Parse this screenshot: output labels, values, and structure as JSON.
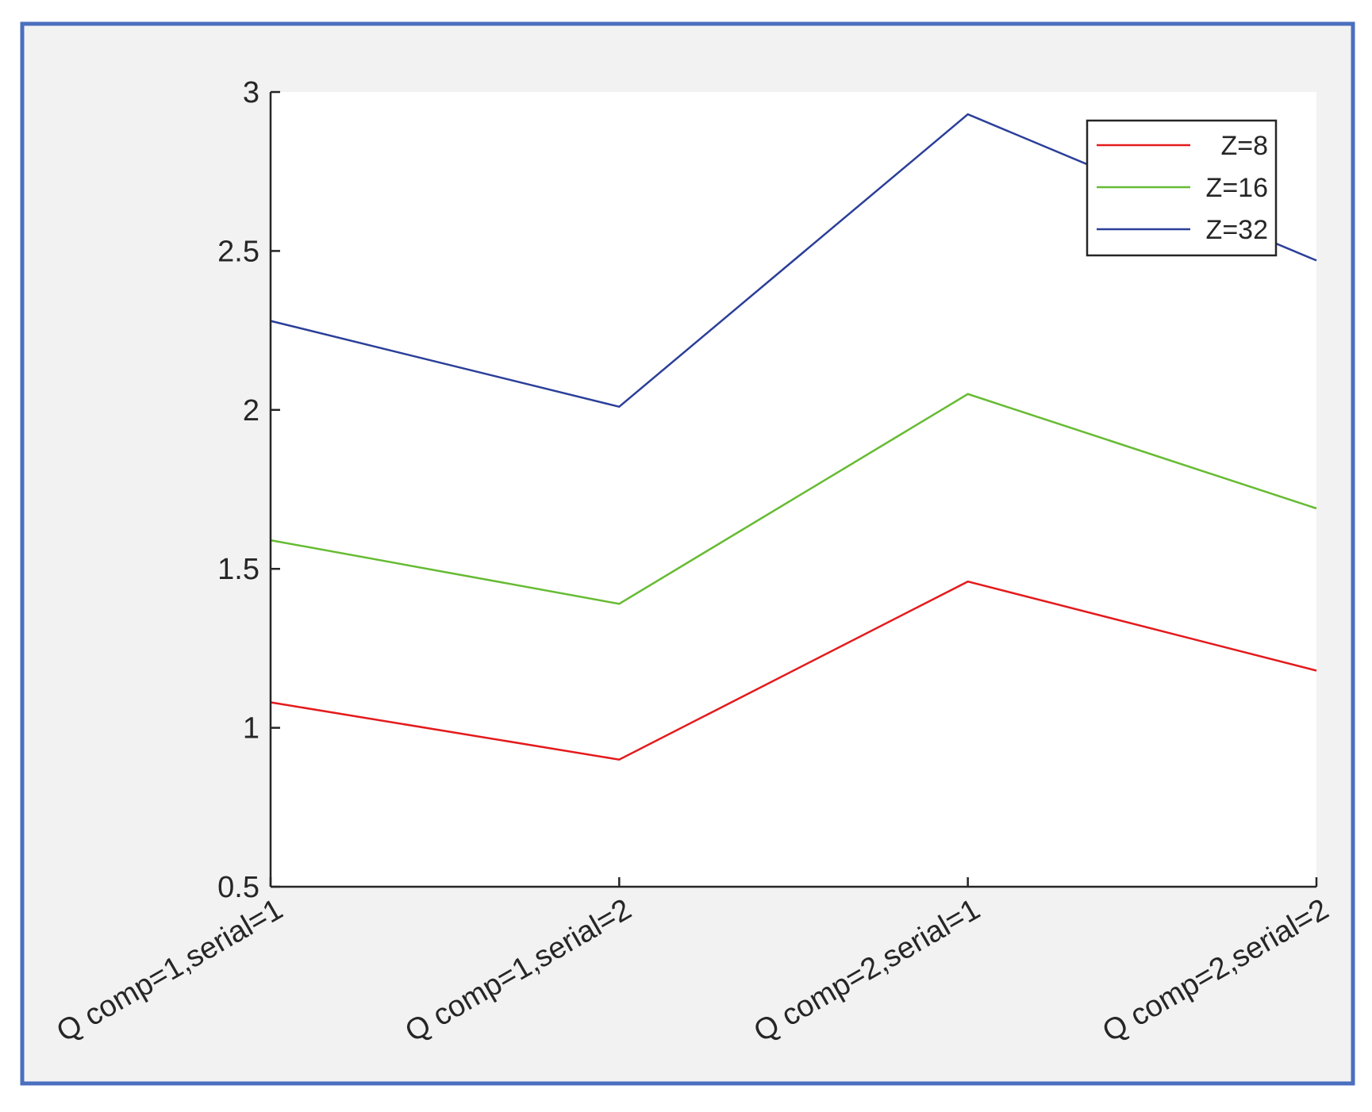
{
  "chart_data": {
    "type": "line",
    "title": "",
    "xlabel": "",
    "ylabel": "",
    "categories": [
      "Q comp=1,serial=1",
      "Q comp=1,serial=2",
      "Q comp=2,serial=1",
      "Q comp=2,serial=2"
    ],
    "ylim": [
      0.5,
      3
    ],
    "yticks": [
      "0.5",
      "1",
      "1.5",
      "2",
      "2.5",
      "3"
    ],
    "grid": false,
    "legend_position": "top-right",
    "series": [
      {
        "name": "Z=8",
        "color": "#e41a1c",
        "values": [
          1.08,
          0.9,
          1.46,
          1.18
        ]
      },
      {
        "name": "Z=16",
        "color": "#66bb33",
        "values": [
          1.59,
          1.39,
          2.05,
          1.69
        ]
      },
      {
        "name": "Z=32",
        "color": "#2b3f99",
        "values": [
          2.28,
          2.01,
          2.93,
          2.47
        ]
      }
    ],
    "colors": {
      "frame_border": "#4a6fbf",
      "figure_background": "#f2f2f2",
      "axes_background": "#ffffff"
    }
  }
}
